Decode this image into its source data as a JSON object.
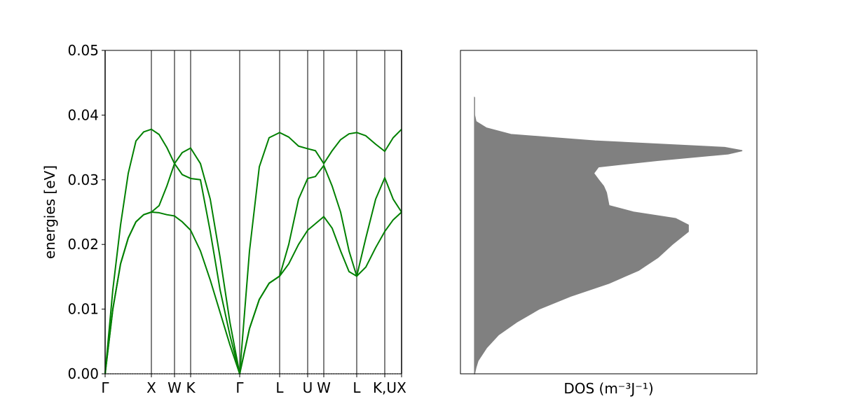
{
  "chart_data": [
    {
      "type": "line",
      "ylabel": "energies [eV]",
      "x": [
        0,
        0.11,
        0.22,
        0.33,
        0.44,
        0.55,
        0.66,
        0.77,
        0.88,
        0.99,
        1.1,
        1.22,
        1.36,
        1.5,
        1.64,
        1.78,
        1.92,
        2.06,
        2.2,
        2.34,
        2.49,
        2.62,
        2.76,
        2.89,
        3.0,
        3.12,
        3.24,
        3.36,
        3.48,
        3.59,
        3.72,
        3.86,
        3.99,
        4.11,
        4.23
      ],
      "xlim": [
        0,
        4.23
      ],
      "xticks": [
        {
          "value": 0,
          "label": "Γ"
        },
        {
          "value": 0.66,
          "label": "X"
        },
        {
          "value": 0.99,
          "label": "W"
        },
        {
          "value": 1.22,
          "label": "K"
        },
        {
          "value": 1.92,
          "label": "Γ"
        },
        {
          "value": 2.49,
          "label": "L"
        },
        {
          "value": 2.89,
          "label": "U"
        },
        {
          "value": 3.12,
          "label": "W"
        },
        {
          "value": 3.59,
          "label": "L"
        },
        {
          "value": 3.99,
          "label": "K,U"
        },
        {
          "value": 4.23,
          "label": "X"
        }
      ],
      "ylim": [
        0,
        0.05
      ],
      "yticks": [
        {
          "value": 0,
          "label": "0.00"
        },
        {
          "value": 0.01,
          "label": "0.01"
        },
        {
          "value": 0.02,
          "label": "0.02"
        },
        {
          "value": 0.03,
          "label": "0.03"
        },
        {
          "value": 0.04,
          "label": "0.04"
        },
        {
          "value": 0.05,
          "label": "0.05"
        }
      ],
      "grid": "x",
      "grid_color": "#808080",
      "series": [
        {
          "color": "#008000",
          "values": [
            0,
            0.013,
            0.023,
            0.031,
            0.036,
            0.0374,
            0.0378,
            0.037,
            0.035,
            0.0325,
            0.0342,
            0.0349,
            0.0325,
            0.027,
            0.018,
            0.008,
            0,
            0.019,
            0.032,
            0.0365,
            0.0373,
            0.0366,
            0.0352,
            0.0348,
            0.0345,
            0.0325,
            0.0345,
            0.0362,
            0.0371,
            0.0373,
            0.0368,
            0.0355,
            0.0344,
            0.0365,
            0.0378
          ]
        },
        {
          "color": "#008000",
          "values": [
            0,
            0.01,
            0.017,
            0.021,
            0.0235,
            0.0246,
            0.025,
            0.026,
            0.029,
            0.0325,
            0.0308,
            0.0302,
            0.03,
            0.022,
            0.013,
            0.006,
            0,
            0.007,
            0.0115,
            0.014,
            0.0151,
            0.02,
            0.027,
            0.0302,
            0.0305,
            0.0322,
            0.029,
            0.025,
            0.019,
            0.0151,
            0.021,
            0.027,
            0.0303,
            0.027,
            0.025
          ]
        },
        {
          "color": "#008000",
          "values": [
            0,
            0.01,
            0.017,
            0.021,
            0.0235,
            0.0246,
            0.025,
            0.0249,
            0.0246,
            0.0244,
            0.0235,
            0.0222,
            0.019,
            0.0145,
            0.0095,
            0.0045,
            0,
            0.007,
            0.0115,
            0.014,
            0.0151,
            0.017,
            0.02,
            0.0222,
            0.0232,
            0.0243,
            0.0225,
            0.019,
            0.0158,
            0.0151,
            0.0165,
            0.0195,
            0.022,
            0.0238,
            0.025
          ]
        }
      ]
    },
    {
      "type": "area",
      "orientation": "horizontal",
      "xlabel": "DOS (m⁻³J⁻¹)",
      "y": [
        0,
        0.001,
        0.002,
        0.004,
        0.006,
        0.008,
        0.01,
        0.012,
        0.014,
        0.016,
        0.018,
        0.02,
        0.022,
        0.023,
        0.024,
        0.025,
        0.026,
        0.028,
        0.029,
        0.03,
        0.031,
        0.032,
        0.033,
        0.034,
        0.0345,
        0.035,
        0.036,
        0.037,
        0.038,
        0.039,
        0.04,
        0.0427
      ],
      "values": [
        0,
        0.005,
        0.012,
        0.042,
        0.084,
        0.149,
        0.228,
        0.34,
        0.476,
        0.581,
        0.65,
        0.7,
        0.757,
        0.757,
        0.712,
        0.563,
        0.476,
        0.467,
        0.457,
        0.439,
        0.422,
        0.439,
        0.65,
        0.898,
        0.948,
        0.886,
        0.427,
        0.129,
        0.042,
        0.005,
        0,
        0
      ],
      "color": "#808080",
      "xlim": [
        -0.05,
        1.0
      ],
      "ylim": [
        0,
        0.05
      ]
    }
  ]
}
